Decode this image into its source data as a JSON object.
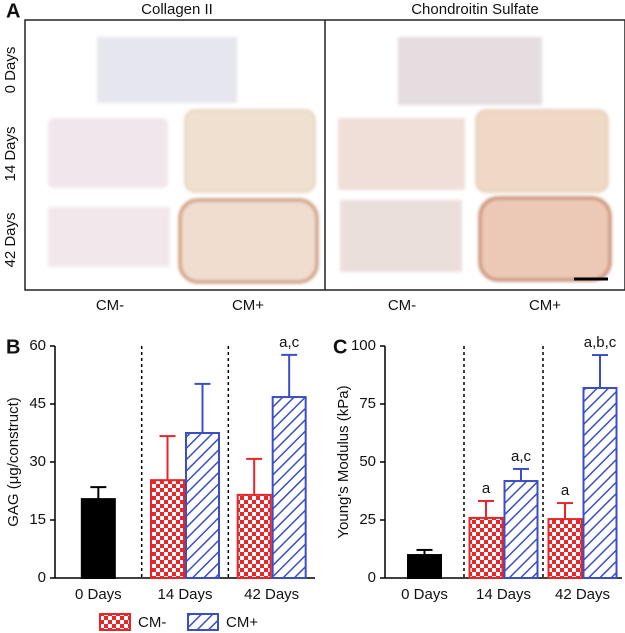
{
  "image_panel": {
    "panel_label": "A",
    "columns": [
      "Collagen II",
      "Chondroitin Sulfate"
    ],
    "rows": [
      "0 Days",
      "14 Days",
      "42 Days"
    ],
    "conditions": [
      "CM-",
      "CM+",
      "CM-",
      "CM+"
    ]
  },
  "chart_data": [
    {
      "type": "bar",
      "panel_label": "B",
      "y_label": "GAG (μg/construct)",
      "categories": [
        "0 Days",
        "14 Days",
        "42 Days"
      ],
      "series": [
        {
          "color": "#000000",
          "values": [
            20.4,
            null,
            null
          ],
          "errors": [
            3.1,
            null,
            null
          ]
        },
        {
          "name": "CM-",
          "color": "#e8262a",
          "pattern": "checker",
          "values": [
            null,
            25.3,
            21.5
          ],
          "errors": [
            null,
            11.4,
            9.3
          ]
        },
        {
          "name": "CM+",
          "color": "#3b4fc4",
          "pattern": "hatch",
          "values": [
            null,
            37.5,
            46.8
          ],
          "errors": [
            null,
            12.7,
            10.9
          ],
          "significance": [
            null,
            null,
            "a,c"
          ]
        }
      ],
      "ylim": [
        0,
        60
      ],
      "yticks": [
        0,
        15,
        30,
        45,
        60
      ],
      "legend": true
    },
    {
      "type": "bar",
      "panel_label": "C",
      "y_label": "Young's Modulus (kPa)",
      "categories": [
        "0 Days",
        "14 Days",
        "42 Days"
      ],
      "series": [
        {
          "color": "#000000",
          "values": [
            9.9,
            null,
            null
          ],
          "errors": [
            2.2,
            null,
            null
          ]
        },
        {
          "name": "CM-",
          "color": "#e8262a",
          "pattern": "checker",
          "values": [
            null,
            25.9,
            25.4
          ],
          "errors": [
            null,
            7.3,
            6.9
          ],
          "significance": [
            null,
            "a",
            "a"
          ]
        },
        {
          "name": "CM+",
          "color": "#3b4fc4",
          "pattern": "hatch",
          "values": [
            null,
            41.8,
            81.9
          ],
          "errors": [
            null,
            5.2,
            14.2
          ],
          "significance": [
            null,
            "a,c",
            "a,b,c"
          ]
        }
      ],
      "ylim": [
        0,
        100
      ],
      "yticks": [
        0,
        25,
        50,
        75,
        100
      ],
      "legend": false
    }
  ]
}
